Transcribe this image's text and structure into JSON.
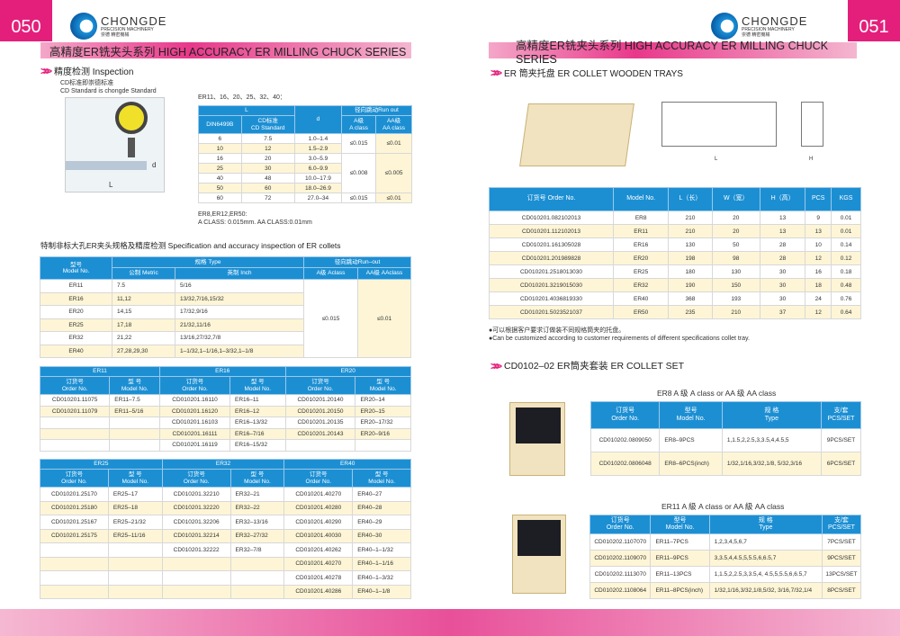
{
  "left": {
    "page_number": "050",
    "title": "高精度ER铣夹头系列   HIGH ACCURACY ER MILLING CHUCK SERIES",
    "inspection": {
      "heading": "精度检测 Inspection",
      "note_cn": "CD标准即崇德标准",
      "note_en": "CD Standard is chongde Standard",
      "dim_l": "L",
      "dim_d": "d",
      "table_caption": "ER11、16、20、25、32、40：",
      "headers": {
        "L": "L",
        "din": "DIN6499B",
        "cd": "CD标准",
        "cd_en": "CD Standard",
        "d": "d",
        "runout": "径向跳动Run out",
        "a": "A级",
        "a_en": "A class",
        "aa": "AA级",
        "aa_en": "AA class"
      },
      "rows": [
        [
          "6",
          "7.5",
          "1.0–1.4"
        ],
        [
          "10",
          "12",
          "1.5–2.9"
        ],
        [
          "16",
          "20",
          "3.0–5.9"
        ],
        [
          "25",
          "30",
          "6.0–9.9"
        ],
        [
          "40",
          "48",
          "10.0–17.9"
        ],
        [
          "50",
          "60",
          "18.0–26.9"
        ],
        [
          "60",
          "72",
          "27.0–34"
        ]
      ],
      "runout": {
        "g1_a": "≤0.015",
        "g1_aa": "≤0.01",
        "g2_a": "≤0.008",
        "g2_aa": "≤0.005",
        "g3_a": "≤0.015",
        "g3_aa": "≤0.01"
      },
      "note1": "ER8,ER12,ER50:",
      "note2": "A  CLASS: 0.015mm.    AA  CLASS:0.01mm"
    },
    "special": {
      "heading": "特制非标大孔ER夹头规格及精度检测 Specification and accuracy inspection of ER collets",
      "headers": {
        "model": "型号",
        "model_en": "Model No.",
        "type": "规格 Type",
        "metric": "公制  Metric",
        "inch": "英制  Inch",
        "runout": "径向跳动Run–out",
        "a": "A级 Aclass",
        "aa": "AA级 AAclass"
      },
      "rows": [
        [
          "ER11",
          "7.5",
          "5/16"
        ],
        [
          "ER16",
          "11,12",
          "13/32,7/16,15/32"
        ],
        [
          "ER20",
          "14,15",
          "17/32,9/16"
        ],
        [
          "ER25",
          "17,18",
          "21/32,11/16"
        ],
        [
          "ER32",
          "21,22",
          "13/16,27/32,7/8"
        ],
        [
          "ER40",
          "27,28,29,30",
          "1–1/32,1–1/16,1–3/32,1–1/8"
        ]
      ],
      "a_value": "≤0.015",
      "aa_value": "≤0.01"
    },
    "order_headers": {
      "order": "订货号",
      "order_en": "Order No.",
      "model": "型 号",
      "model_en": "Model No."
    },
    "table3": {
      "groups": [
        "ER11",
        "ER16",
        "ER20"
      ],
      "rows": [
        [
          "CD010201.11075",
          "ER11–7.5",
          "CD010201.16110",
          "ER16–11",
          "CD010201.20140",
          "ER20–14"
        ],
        [
          "CD010201.11079",
          "ER11–5/16",
          "CD010201.16120",
          "ER16–12",
          "CD010201.20150",
          "ER20–15"
        ],
        [
          "",
          "",
          "CD010201.16103",
          "ER16–13/32",
          "CD010201.20135",
          "ER20–17/32"
        ],
        [
          "",
          "",
          "CD010201.16111",
          "ER16–7/16",
          "CD010201.20143",
          "ER20–9/16"
        ],
        [
          "",
          "",
          "CD010201.16119",
          "ER16–15/32",
          "",
          ""
        ]
      ]
    },
    "table4": {
      "groups": [
        "ER25",
        "ER32",
        "ER40"
      ],
      "rows": [
        [
          "CD010201.25170",
          "ER25–17",
          "CD010201.32210",
          "ER32–21",
          "CD010201.40270",
          "ER40–27"
        ],
        [
          "CD010201.25180",
          "ER25–18",
          "CD010201.32220",
          "ER32–22",
          "CD010201.40280",
          "ER40–28"
        ],
        [
          "CD010201.25167",
          "ER25–21/32",
          "CD010201.32206",
          "ER32–13/16",
          "CD010201.40290",
          "ER40–29"
        ],
        [
          "CD010201.25175",
          "ER25–11/16",
          "CD010201.32214",
          "ER32–27/32",
          "CD010201.40030",
          "ER40–30"
        ],
        [
          "",
          "",
          "CD010201.32222",
          "ER32–7/8",
          "CD010201.40262",
          "ER40–1–1/32"
        ],
        [
          "",
          "",
          "",
          "",
          "CD010201.40270",
          "ER40–1–1/16"
        ],
        [
          "",
          "",
          "",
          "",
          "CD010201.40278",
          "ER40–1–3/32"
        ],
        [
          "",
          "",
          "",
          "",
          "CD010201.40286",
          "ER40–1–1/8"
        ]
      ]
    }
  },
  "right": {
    "page_number": "051",
    "title": "高精度ER铣夹头系列   HIGH ACCURACY ER MILLING CHUCK SERIES",
    "trays": {
      "heading": "ER 筒夹托盘  ER COLLET WOODEN TRAYS",
      "dim_l": "L",
      "dim_h": "H",
      "headers": [
        "订货号 Order No.",
        "Model No.",
        "L（长）",
        "W（宽）",
        "H（高）",
        "PCS",
        "KGS"
      ],
      "rows": [
        [
          "CD010201.082102013",
          "ER8",
          "210",
          "20",
          "13",
          "9",
          "0.01"
        ],
        [
          "CD010201.112102013",
          "ER11",
          "210",
          "20",
          "13",
          "13",
          "0.01"
        ],
        [
          "CD010201.161305028",
          "ER16",
          "130",
          "50",
          "28",
          "10",
          "0.14"
        ],
        [
          "CD010201.201989828",
          "ER20",
          "198",
          "98",
          "28",
          "12",
          "0.12"
        ],
        [
          "CD010201.2518013030",
          "ER25",
          "180",
          "130",
          "30",
          "16",
          "0.18"
        ],
        [
          "CD010201.3219015030",
          "ER32",
          "190",
          "150",
          "30",
          "18",
          "0.48"
        ],
        [
          "CD010201.4036819330",
          "ER40",
          "368",
          "193",
          "30",
          "24",
          "0.76"
        ],
        [
          "CD010201.5023521037",
          "ER50",
          "235",
          "210",
          "37",
          "12",
          "0.64"
        ]
      ],
      "note_cn": "●可以根据客户要求订做装不同规格筒夹的托盘。",
      "note_en": "●Can be customized according to customer requirements of different specifications collet tray."
    },
    "set": {
      "heading": "CD0102–02 ER筒夹套装  ER COLLET SET",
      "headers": {
        "order": "订货号",
        "order_en": "Order No.",
        "model": "型号",
        "model_en": "Model No.",
        "type": "规 格",
        "type_en": "Type",
        "pcs": "支/套",
        "pcs_en": "PCS/SET"
      },
      "er8": {
        "caption": "ER8 A 级 A class or AA 级 AA class",
        "rows": [
          [
            "CD010202.0809050",
            "ER8–9PCS",
            "1,1.5,2,2.5,3,3.5,4,4.5,5",
            "9PCS/SET"
          ],
          [
            "CD010202.0806048",
            "ER8–6PCS(inch)",
            "1/32,1/16,3/32,1/8, 5/32,3/16",
            "6PCS/SET"
          ]
        ]
      },
      "er11": {
        "caption": "ER11 A 級 A class  or AA 級 AA class",
        "rows": [
          [
            "CD010202.1107070",
            "ER11–7PCS",
            "1,2,3,4,5,6,7",
            "7PCS/SET"
          ],
          [
            "CD010202.1109070",
            "ER11–9PCS",
            "3,3.5,4,4.5,5,5.5,6,6.5,7",
            "9PCS/SET"
          ],
          [
            "CD010202.1113070",
            "ER11–13PCS",
            "1,1.5,2,2.5,3,3.5,4, 4.5,5,5.5,6,6.5,7",
            "13PCS/SET"
          ],
          [
            "CD010202.1108064",
            "ER11–8PCS(inch)",
            "1/32,1/16,3/32,1/8,5/32, 3/16,7/32,1/4",
            "8PCS/SET"
          ]
        ]
      }
    }
  },
  "brand": {
    "name": "CHONGDE",
    "sub": "PRECISION MACHINERY",
    "cn": "崇德 精密機械"
  },
  "colors": {
    "accent": "#e41f7b",
    "header_blue": "#1c8fd3",
    "row_alt": "#fdf5d6"
  }
}
